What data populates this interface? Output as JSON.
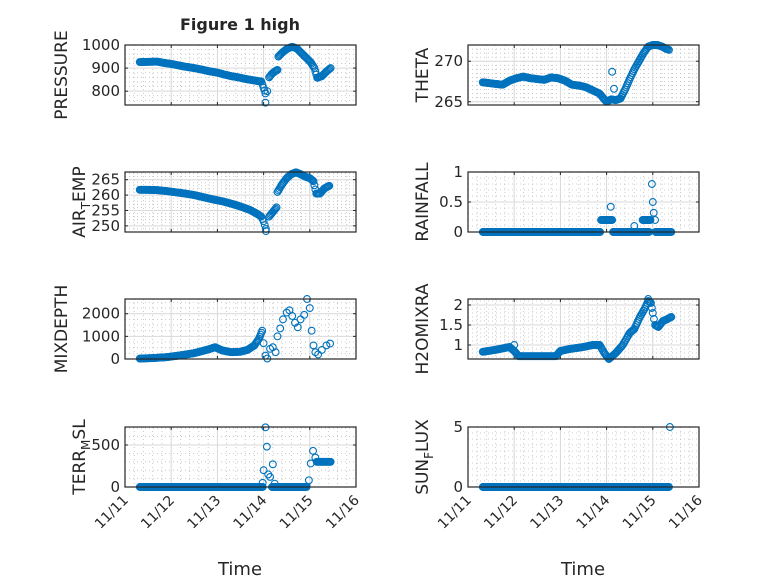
{
  "figure": {
    "title": "Figure 1 high",
    "xlabel": "Time"
  },
  "colors": {
    "marker": "#0072BD",
    "axis": "#262626",
    "grid": "#d9d9d9"
  },
  "chart_data": {
    "type": "scatter",
    "title": "Figure 1 high",
    "xlabel": "Time",
    "x_units": "days since 11/11",
    "xlim": [
      0,
      5
    ],
    "xticks": [
      0,
      1,
      2,
      3,
      4,
      5
    ],
    "xtick_labels": [
      "11/11",
      "11/12",
      "11/13",
      "11/14",
      "11/15",
      "11/16"
    ],
    "grid": "on (major + minor)",
    "marker": "open circle",
    "subplots": [
      {
        "ylabel": "PRESSURE",
        "ylim": [
          740,
          1000
        ],
        "yticks": [
          800,
          900,
          1000
        ],
        "ytick_labels": [
          "800",
          "900",
          "1000"
        ],
        "segments": [
          [
            [
              0.32,
              926
            ],
            [
              0.5,
              927
            ],
            [
              0.7,
              928
            ],
            [
              0.85,
              922
            ],
            [
              1.0,
              918
            ],
            [
              1.15,
              912
            ],
            [
              1.3,
              906
            ],
            [
              1.5,
              900
            ],
            [
              1.65,
              894
            ],
            [
              1.8,
              887
            ],
            [
              2.0,
              880
            ],
            [
              2.15,
              872
            ],
            [
              2.3,
              865
            ],
            [
              2.45,
              860
            ],
            [
              2.6,
              853
            ],
            [
              2.75,
              848
            ],
            [
              2.9,
              843
            ],
            [
              2.95,
              842
            ],
            [
              3.0,
              815
            ],
            [
              3.04,
              790
            ]
          ],
          [
            [
              3.12,
              860
            ],
            [
              3.18,
              875
            ],
            [
              3.24,
              885
            ],
            [
              3.3,
              892
            ]
          ],
          [
            [
              3.32,
              950
            ],
            [
              3.42,
              970
            ],
            [
              3.52,
              985
            ],
            [
              3.62,
              992
            ],
            [
              3.72,
              985
            ],
            [
              3.82,
              965
            ],
            [
              3.92,
              945
            ],
            [
              4.02,
              925
            ],
            [
              4.1,
              900
            ],
            [
              4.16,
              858
            ],
            [
              4.26,
              865
            ],
            [
              4.36,
              885
            ],
            [
              4.45,
              900
            ]
          ]
        ],
        "points": [
          [
            3.04,
            750
          ],
          [
            3.08,
            800
          ]
        ]
      },
      {
        "ylabel": "THETA",
        "ylim": [
          264.6,
          272
        ],
        "yticks": [
          265,
          270
        ],
        "ytick_labels": [
          "265",
          "270"
        ],
        "segments": [
          [
            [
              0.32,
              267.4
            ],
            [
              0.45,
              267.3
            ],
            [
              0.6,
              267.2
            ],
            [
              0.75,
              267.1
            ],
            [
              0.9,
              267.6
            ],
            [
              1.05,
              267.9
            ],
            [
              1.2,
              268.1
            ],
            [
              1.35,
              267.9
            ],
            [
              1.5,
              267.8
            ],
            [
              1.65,
              267.7
            ],
            [
              1.8,
              268.0
            ],
            [
              1.95,
              267.9
            ],
            [
              2.1,
              267.6
            ],
            [
              2.25,
              267.1
            ],
            [
              2.4,
              267.0
            ],
            [
              2.55,
              266.8
            ],
            [
              2.7,
              266.4
            ],
            [
              2.85,
              266.0
            ],
            [
              2.95,
              265.3
            ],
            [
              3.0,
              265.0
            ],
            [
              3.1,
              265.3
            ],
            [
              3.2,
              265.2
            ],
            [
              3.3,
              265.4
            ]
          ],
          [
            [
              3.3,
              265.4
            ],
            [
              3.4,
              266.5
            ],
            [
              3.5,
              267.8
            ],
            [
              3.6,
              269.0
            ],
            [
              3.7,
              270.0
            ],
            [
              3.8,
              271.0
            ],
            [
              3.9,
              271.8
            ],
            [
              4.0,
              272.0
            ],
            [
              4.1,
              272.0
            ],
            [
              4.2,
              271.8
            ],
            [
              4.3,
              271.5
            ],
            [
              4.35,
              271.4
            ]
          ]
        ],
        "points": [
          [
            3.12,
            268.7
          ],
          [
            3.16,
            266.6
          ]
        ]
      },
      {
        "ylabel": "AIR_TEMP",
        "ylim": [
          248,
          267.5
        ],
        "yticks": [
          250,
          255,
          260,
          265
        ],
        "ytick_labels": [
          "250",
          "255",
          "260",
          "265"
        ],
        "segments": [
          [
            [
              0.32,
              261.7
            ],
            [
              0.5,
              261.7
            ],
            [
              0.7,
              261.6
            ],
            [
              0.9,
              261.3
            ],
            [
              1.1,
              260.9
            ],
            [
              1.3,
              260.5
            ],
            [
              1.5,
              260.0
            ],
            [
              1.7,
              259.3
            ],
            [
              1.9,
              258.6
            ],
            [
              2.1,
              258.0
            ],
            [
              2.3,
              257.2
            ],
            [
              2.5,
              256.3
            ],
            [
              2.7,
              255.2
            ],
            [
              2.85,
              254.0
            ],
            [
              2.95,
              253.0
            ],
            [
              3.0,
              251.5
            ],
            [
              3.05,
              249.0
            ]
          ],
          [
            [
              3.12,
              253
            ],
            [
              3.2,
              254.5
            ],
            [
              3.28,
              256
            ]
          ],
          [
            [
              3.3,
              261
            ],
            [
              3.4,
              263.5
            ],
            [
              3.5,
              265.5
            ],
            [
              3.6,
              266.8
            ],
            [
              3.7,
              267.4
            ],
            [
              3.8,
              266.8
            ],
            [
              3.9,
              266.0
            ],
            [
              4.0,
              265.5
            ],
            [
              4.08,
              264.5
            ],
            [
              4.14,
              260.5
            ],
            [
              4.22,
              260.5
            ],
            [
              4.32,
              262.2
            ],
            [
              4.42,
              263.0
            ]
          ]
        ],
        "points": [
          [
            3.05,
            248.3
          ]
        ]
      },
      {
        "ylabel": "RAINFALL",
        "ylim": [
          0,
          1
        ],
        "yticks": [
          0,
          0.5,
          1
        ],
        "ytick_labels": [
          "0",
          "0.5",
          "1"
        ],
        "segments": [
          [
            [
              0.32,
              0
            ],
            [
              2.86,
              0
            ]
          ],
          [
            [
              2.88,
              0.2
            ],
            [
              3.12,
              0.2
            ]
          ],
          [
            [
              3.14,
              0
            ],
            [
              3.92,
              0
            ]
          ],
          [
            [
              3.78,
              0.2
            ],
            [
              3.95,
              0.2
            ]
          ],
          [
            [
              4.06,
              0
            ],
            [
              4.4,
              0
            ]
          ]
        ],
        "points": [
          [
            3.09,
            0.42
          ],
          [
            3.6,
            0.1
          ],
          [
            3.98,
            0.8
          ],
          [
            4.0,
            0.5
          ],
          [
            4.02,
            0.32
          ],
          [
            4.05,
            0.2
          ]
        ]
      },
      {
        "ylabel": "MIXDEPTH",
        "ylim": [
          0,
          2650
        ],
        "yticks": [
          0,
          1000,
          2000
        ],
        "ytick_labels": [
          "0",
          "1000",
          "2000"
        ],
        "segments": [
          [
            [
              0.32,
              20
            ],
            [
              0.6,
              40
            ],
            [
              0.9,
              80
            ],
            [
              1.2,
              160
            ],
            [
              1.5,
              260
            ],
            [
              1.8,
              420
            ],
            [
              1.95,
              520
            ],
            [
              2.1,
              380
            ],
            [
              2.3,
              300
            ],
            [
              2.5,
              320
            ],
            [
              2.65,
              400
            ],
            [
              2.8,
              600
            ],
            [
              2.9,
              900
            ],
            [
              2.97,
              1250
            ]
          ]
        ],
        "points": [
          [
            3.0,
            700
          ],
          [
            3.04,
            150
          ],
          [
            3.08,
            20
          ],
          [
            3.14,
            450
          ],
          [
            3.2,
            520
          ],
          [
            3.26,
            300
          ],
          [
            3.3,
            1000
          ],
          [
            3.36,
            1350
          ],
          [
            3.42,
            1750
          ],
          [
            3.5,
            2050
          ],
          [
            3.56,
            2150
          ],
          [
            3.62,
            1900
          ],
          [
            3.68,
            1600
          ],
          [
            3.74,
            1400
          ],
          [
            3.8,
            1750
          ],
          [
            3.88,
            1950
          ],
          [
            3.94,
            2650
          ],
          [
            4.0,
            2250
          ],
          [
            4.04,
            1250
          ],
          [
            4.08,
            600
          ],
          [
            4.12,
            300
          ],
          [
            4.18,
            200
          ],
          [
            4.26,
            400
          ],
          [
            4.36,
            600
          ],
          [
            4.44,
            680
          ]
        ]
      },
      {
        "ylabel": "H2OMIXRA",
        "ylim": [
          0.65,
          2.15
        ],
        "yticks": [
          1,
          1.5,
          2
        ],
        "ytick_labels": [
          "1",
          "1.5",
          "2"
        ],
        "segments": [
          [
            [
              0.32,
              0.83
            ],
            [
              0.6,
              0.88
            ],
            [
              0.9,
              0.95
            ],
            [
              1.0,
              0.85
            ],
            [
              1.1,
              0.72
            ],
            [
              1.3,
              0.72
            ],
            [
              1.6,
              0.72
            ],
            [
              1.9,
              0.72
            ],
            [
              2.0,
              0.85
            ],
            [
              2.2,
              0.9
            ],
            [
              2.5,
              0.95
            ],
            [
              2.7,
              1.0
            ],
            [
              2.85,
              1.0
            ],
            [
              2.95,
              0.8
            ],
            [
              3.05,
              0.65
            ],
            [
              3.2,
              0.8
            ],
            [
              3.35,
              1.0
            ],
            [
              3.5,
              1.3
            ],
            [
              3.6,
              1.4
            ],
            [
              3.72,
              1.7
            ],
            [
              3.82,
              1.9
            ],
            [
              3.9,
              2.1
            ],
            [
              3.96,
              2.05
            ],
            [
              4.0,
              1.8
            ],
            [
              4.05,
              1.5
            ],
            [
              4.12,
              1.45
            ],
            [
              4.22,
              1.6
            ],
            [
              4.32,
              1.65
            ],
            [
              4.4,
              1.7
            ]
          ]
        ],
        "points": [
          [
            1.0,
            1.0
          ],
          [
            3.9,
            2.15
          ]
        ]
      },
      {
        "ylabel": "TERR_MSL",
        "ylim": [
          0,
          714
        ],
        "yticks": [
          0,
          500
        ],
        "ytick_labels": [
          "0",
          "500"
        ],
        "segments": [
          [
            [
              0.32,
              0
            ],
            [
              2.98,
              0
            ]
          ],
          [
            [
              3.18,
              0
            ],
            [
              3.93,
              0
            ]
          ],
          [
            [
              4.15,
              300
            ],
            [
              4.45,
              300
            ]
          ]
        ],
        "points": [
          [
            2.98,
            50
          ],
          [
            3.0,
            200
          ],
          [
            3.04,
            710
          ],
          [
            3.07,
            480
          ],
          [
            3.1,
            150
          ],
          [
            3.14,
            120
          ],
          [
            3.2,
            270
          ],
          [
            3.24,
            40
          ],
          [
            3.98,
            80
          ],
          [
            4.02,
            280
          ],
          [
            4.07,
            430
          ],
          [
            4.12,
            350
          ]
        ]
      },
      {
        "ylabel": "SUN_FLUX",
        "ylim": [
          0,
          5
        ],
        "yticks": [
          0,
          5
        ],
        "ytick_labels": [
          "0",
          "5"
        ],
        "segments": [
          [
            [
              0.32,
              0
            ],
            [
              4.35,
              0
            ]
          ]
        ],
        "points": [
          [
            4.37,
            5
          ]
        ]
      }
    ]
  }
}
